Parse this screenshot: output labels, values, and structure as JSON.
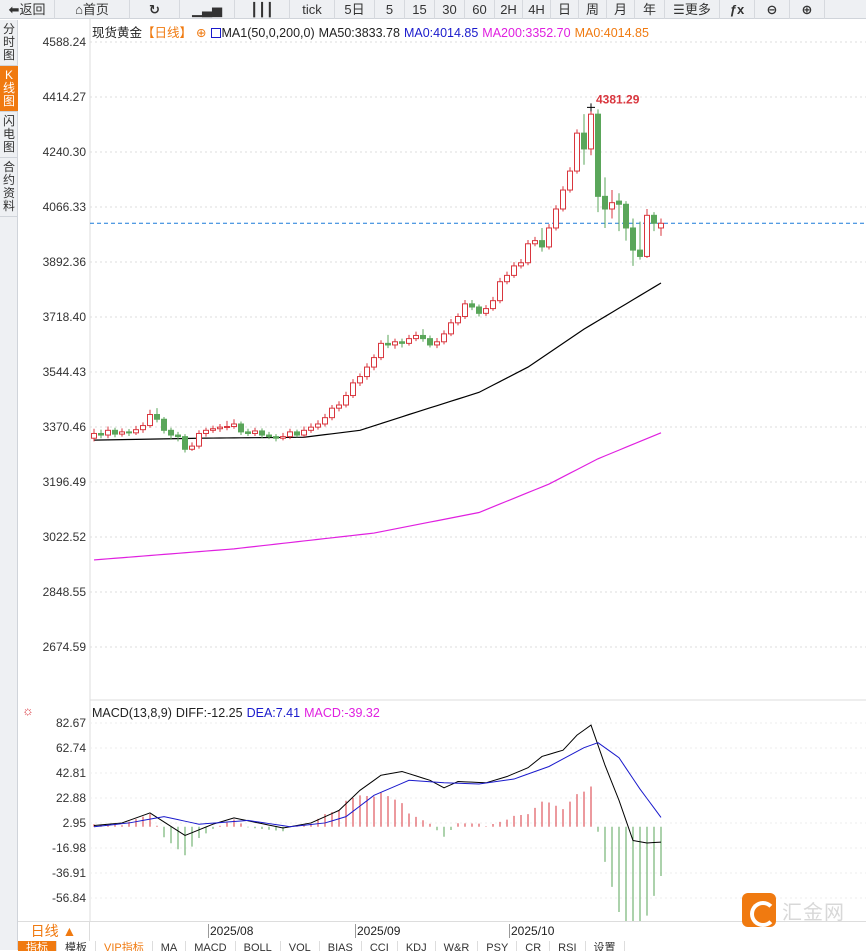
{
  "toolbar": {
    "items": [
      {
        "label": "返回",
        "icon": "back-arrow-icon"
      },
      {
        "label": "首页",
        "icon": "home-icon"
      },
      {
        "label": "",
        "icon": "refresh-icon"
      },
      {
        "label": "",
        "icon": "indicator-chart-icon"
      },
      {
        "label": "",
        "icon": "candlestick-icon"
      },
      {
        "label": "tick"
      },
      {
        "label": "5日"
      },
      {
        "label": "5"
      },
      {
        "label": "15"
      },
      {
        "label": "30"
      },
      {
        "label": "60"
      },
      {
        "label": "2H"
      },
      {
        "label": "4H"
      },
      {
        "label": "日"
      },
      {
        "label": "周"
      },
      {
        "label": "月"
      },
      {
        "label": "年"
      },
      {
        "label": "更多",
        "icon": "menu-icon"
      },
      {
        "label": "",
        "icon": "fx-icon"
      },
      {
        "label": "",
        "icon": "zoom-out-icon"
      },
      {
        "label": "",
        "icon": "zoom-in-icon"
      }
    ]
  },
  "sidetabs": [
    {
      "label": "分时图"
    },
    {
      "label": "K线图",
      "active": true
    },
    {
      "label": "闪电图"
    },
    {
      "label": "合约资料"
    }
  ],
  "legend": {
    "symbol": "现货黄金",
    "period": "【日线】",
    "indicator": "MA1(50,0,200,0)",
    "ma50": "MA50:3833.78",
    "ma0a": "MA0:4014.85",
    "ma200": "MA200:3352.70",
    "ma0b": "MA0:4014.85"
  },
  "macd_legend": {
    "name": "MACD(13,8,9)",
    "diff": "DIFF:-12.25",
    "dea": "DEA:7.41",
    "macd": "MACD:-39.32"
  },
  "colors": {
    "up": "#d9363e",
    "down": "#5aa65a",
    "ma50": "#000000",
    "ma200": "#e020e0",
    "dea": "#1a1acc",
    "diff": "#000000",
    "current_line": "#1a7ad9",
    "accent": "#f07a10"
  },
  "chart_data": [
    {
      "type": "candlestick",
      "y_ticks": [
        "4588.24",
        "4414.27",
        "4240.30",
        "4066.33",
        "3892.36",
        "3718.40",
        "3544.43",
        "3370.46",
        "3196.49",
        "3022.52",
        "2848.55",
        "2674.59"
      ],
      "ylim": [
        2590,
        4640
      ],
      "x_ticks": [
        {
          "label": "2025/08",
          "index": 16
        },
        {
          "label": "2025/09",
          "index": 37
        },
        {
          "label": "2025/10",
          "index": 59
        }
      ],
      "current_price": 4014.85,
      "high_label": "4381.29",
      "high_index": 71,
      "candles": [
        [
          3335,
          3365,
          3325,
          3350
        ],
        [
          3350,
          3362,
          3335,
          3345
        ],
        [
          3345,
          3372,
          3335,
          3360
        ],
        [
          3360,
          3368,
          3338,
          3348
        ],
        [
          3348,
          3366,
          3340,
          3355
        ],
        [
          3355,
          3364,
          3342,
          3352
        ],
        [
          3352,
          3374,
          3345,
          3362
        ],
        [
          3362,
          3385,
          3352,
          3375
        ],
        [
          3375,
          3425,
          3368,
          3410
        ],
        [
          3410,
          3430,
          3385,
          3395
        ],
        [
          3395,
          3402,
          3350,
          3360
        ],
        [
          3360,
          3368,
          3330,
          3345
        ],
        [
          3345,
          3355,
          3325,
          3340
        ],
        [
          3340,
          3348,
          3290,
          3300
        ],
        [
          3300,
          3322,
          3295,
          3310
        ],
        [
          3310,
          3360,
          3302,
          3350
        ],
        [
          3350,
          3368,
          3340,
          3360
        ],
        [
          3360,
          3375,
          3352,
          3365
        ],
        [
          3365,
          3380,
          3355,
          3370
        ],
        [
          3370,
          3390,
          3360,
          3372
        ],
        [
          3372,
          3395,
          3365,
          3380
        ],
        [
          3380,
          3388,
          3345,
          3355
        ],
        [
          3355,
          3365,
          3342,
          3350
        ],
        [
          3350,
          3368,
          3342,
          3358
        ],
        [
          3358,
          3366,
          3335,
          3345
        ],
        [
          3345,
          3355,
          3332,
          3340
        ],
        [
          3340,
          3348,
          3325,
          3335
        ],
        [
          3335,
          3352,
          3328,
          3340
        ],
        [
          3340,
          3365,
          3332,
          3355
        ],
        [
          3355,
          3362,
          3338,
          3345
        ],
        [
          3345,
          3372,
          3338,
          3360
        ],
        [
          3360,
          3382,
          3352,
          3370
        ],
        [
          3370,
          3392,
          3362,
          3380
        ],
        [
          3380,
          3412,
          3372,
          3400
        ],
        [
          3400,
          3440,
          3392,
          3430
        ],
        [
          3430,
          3452,
          3420,
          3440
        ],
        [
          3440,
          3482,
          3432,
          3470
        ],
        [
          3470,
          3522,
          3462,
          3510
        ],
        [
          3510,
          3540,
          3500,
          3530
        ],
        [
          3530,
          3572,
          3520,
          3560
        ],
        [
          3560,
          3600,
          3550,
          3590
        ],
        [
          3590,
          3645,
          3582,
          3635
        ],
        [
          3635,
          3662,
          3620,
          3630
        ],
        [
          3630,
          3650,
          3618,
          3640
        ],
        [
          3640,
          3650,
          3622,
          3635
        ],
        [
          3635,
          3662,
          3628,
          3650
        ],
        [
          3650,
          3672,
          3642,
          3660
        ],
        [
          3660,
          3680,
          3640,
          3650
        ],
        [
          3650,
          3660,
          3622,
          3630
        ],
        [
          3630,
          3652,
          3620,
          3640
        ],
        [
          3640,
          3676,
          3632,
          3665
        ],
        [
          3665,
          3712,
          3658,
          3700
        ],
        [
          3700,
          3730,
          3692,
          3720
        ],
        [
          3720,
          3772,
          3712,
          3760
        ],
        [
          3760,
          3772,
          3740,
          3750
        ],
        [
          3750,
          3758,
          3720,
          3730
        ],
        [
          3730,
          3756,
          3722,
          3745
        ],
        [
          3745,
          3782,
          3738,
          3770
        ],
        [
          3770,
          3842,
          3762,
          3830
        ],
        [
          3830,
          3862,
          3822,
          3850
        ],
        [
          3850,
          3892,
          3842,
          3880
        ],
        [
          3880,
          3902,
          3872,
          3890
        ],
        [
          3890,
          3962,
          3882,
          3950
        ],
        [
          3950,
          3972,
          3942,
          3960
        ],
        [
          3960,
          4000,
          3925,
          3940
        ],
        [
          3940,
          4012,
          3932,
          4000
        ],
        [
          4000,
          4072,
          3992,
          4060
        ],
        [
          4060,
          4132,
          4052,
          4120
        ],
        [
          4120,
          4192,
          4112,
          4180
        ],
        [
          4180,
          4312,
          4172,
          4300
        ],
        [
          4300,
          4360,
          4200,
          4250
        ],
        [
          4250,
          4381.29,
          4230,
          4360
        ],
        [
          4360,
          4375,
          4050,
          4100
        ],
        [
          4100,
          4160,
          4000,
          4060
        ],
        [
          4060,
          4120,
          4030,
          4080
        ],
        [
          4085,
          4110,
          3990,
          4075
        ],
        [
          4075,
          4085,
          3960,
          4000
        ],
        [
          4000,
          4030,
          3880,
          3930
        ],
        [
          3930,
          4020,
          3900,
          3910
        ],
        [
          3910,
          4060,
          3905,
          4040
        ],
        [
          4040,
          4050,
          3990,
          4015
        ],
        [
          4000,
          4030,
          3975,
          4014.85
        ]
      ],
      "ma50": [
        [
          0,
          3329
        ],
        [
          15,
          3335
        ],
        [
          30,
          3338
        ],
        [
          38,
          3360
        ],
        [
          45,
          3410
        ],
        [
          55,
          3480
        ],
        [
          62,
          3560
        ],
        [
          70,
          3680
        ],
        [
          81,
          3826
        ]
      ],
      "ma200": [
        [
          0,
          2950
        ],
        [
          20,
          2985
        ],
        [
          40,
          3035
        ],
        [
          55,
          3100
        ],
        [
          65,
          3190
        ],
        [
          72,
          3270
        ],
        [
          81,
          3352
        ]
      ]
    },
    {
      "type": "macd",
      "y_ticks": [
        "82.67",
        "62.74",
        "42.81",
        "22.88",
        "2.95",
        "-16.98",
        "-36.91",
        "-56.84"
      ],
      "ylim": [
        -65,
        88
      ],
      "diff": [
        [
          0,
          1
        ],
        [
          4,
          3
        ],
        [
          8,
          11
        ],
        [
          13,
          -7
        ],
        [
          17,
          2
        ],
        [
          20,
          7
        ],
        [
          27,
          -1
        ],
        [
          31,
          3
        ],
        [
          35,
          13
        ],
        [
          38,
          29
        ],
        [
          41,
          41
        ],
        [
          44,
          44
        ],
        [
          48,
          37
        ],
        [
          50,
          31
        ],
        [
          52,
          36
        ],
        [
          56,
          35
        ],
        [
          59,
          40
        ],
        [
          62,
          47
        ],
        [
          64,
          56
        ],
        [
          67,
          61
        ],
        [
          69,
          73
        ],
        [
          71,
          81
        ],
        [
          73,
          49
        ],
        [
          75,
          21
        ],
        [
          77,
          -11
        ],
        [
          79,
          -13
        ],
        [
          81,
          -12.25
        ]
      ],
      "dea": [
        [
          0,
          0
        ],
        [
          5,
          3
        ],
        [
          10,
          8
        ],
        [
          15,
          2
        ],
        [
          22,
          5
        ],
        [
          28,
          0
        ],
        [
          33,
          3
        ],
        [
          36,
          8
        ],
        [
          40,
          25
        ],
        [
          45,
          37
        ],
        [
          50,
          35
        ],
        [
          55,
          34
        ],
        [
          60,
          38
        ],
        [
          65,
          48
        ],
        [
          70,
          63
        ],
        [
          72,
          67
        ],
        [
          75,
          55
        ],
        [
          78,
          30
        ],
        [
          81,
          7.41
        ]
      ]
    }
  ],
  "datebar": {
    "period": "日线 ▲"
  },
  "bottomtabs": [
    {
      "label": "指标",
      "active": true
    },
    {
      "label": "模板"
    },
    {
      "label": "VIP指标",
      "vip": true
    },
    {
      "label": "MA"
    },
    {
      "label": "MACD"
    },
    {
      "label": "BOLL"
    },
    {
      "label": "VOL"
    },
    {
      "label": "BIAS"
    },
    {
      "label": "CCI"
    },
    {
      "label": "KDJ"
    },
    {
      "label": "W&R"
    },
    {
      "label": "PSY"
    },
    {
      "label": "CR"
    },
    {
      "label": "RSI"
    },
    {
      "label": "设置"
    }
  ],
  "logo": {
    "text": "汇金网"
  }
}
